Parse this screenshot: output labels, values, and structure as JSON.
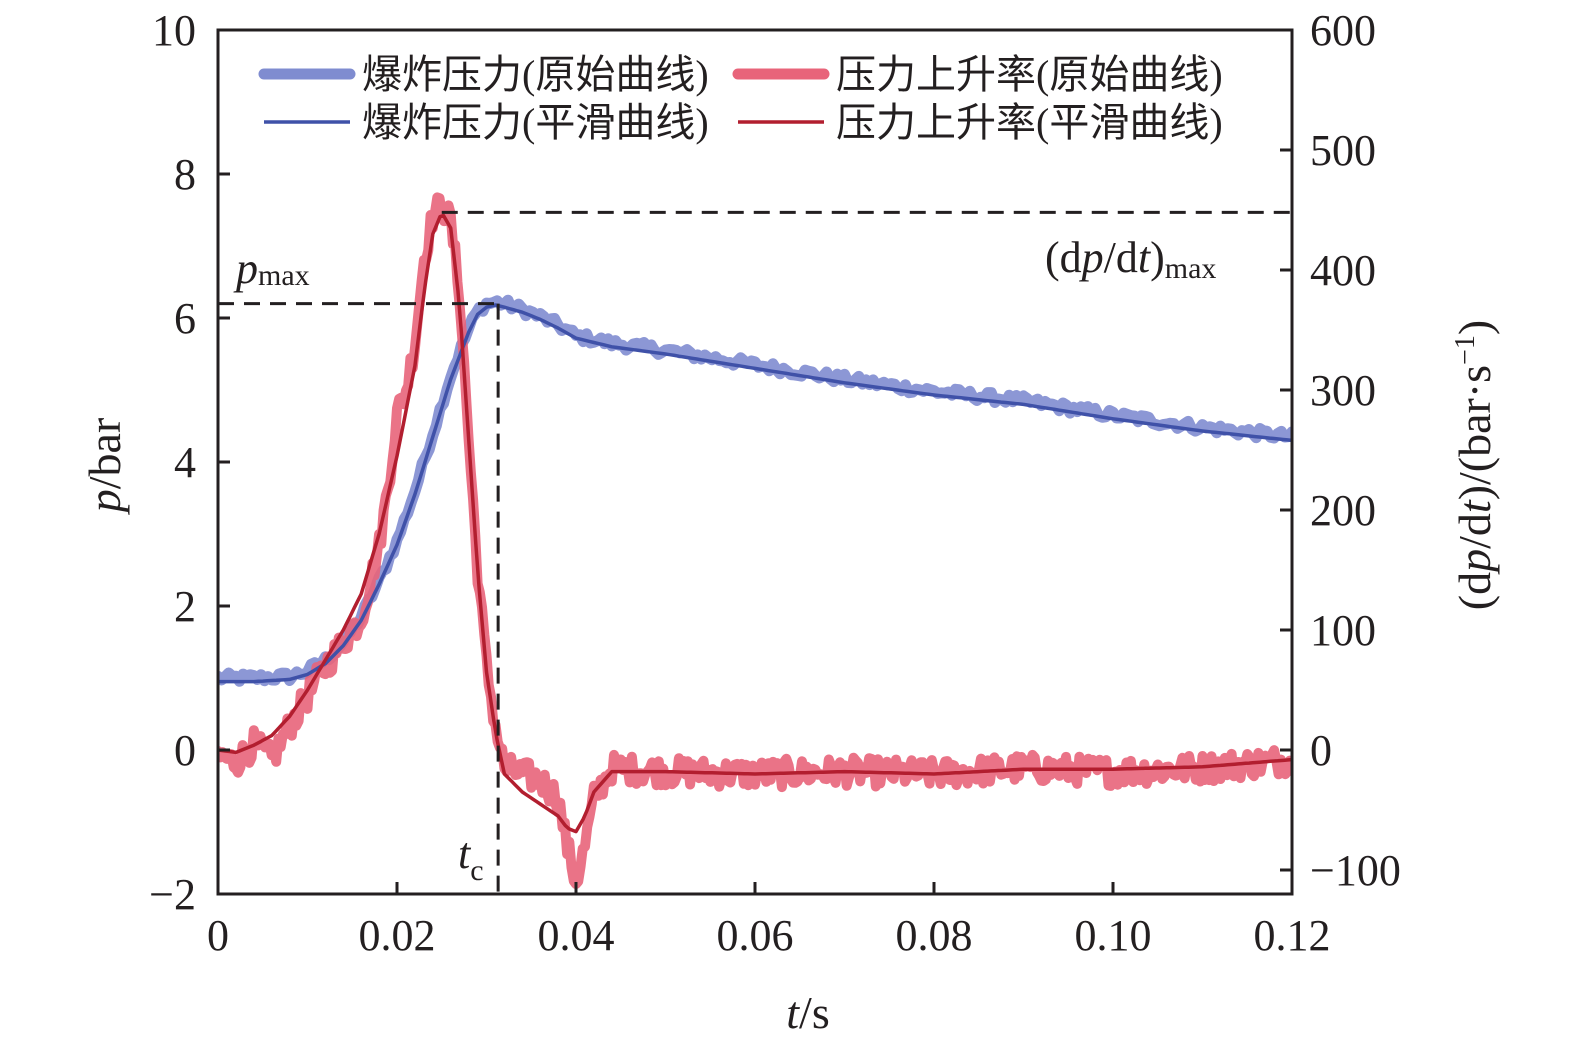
{
  "chart_data": {
    "type": "line",
    "x": {
      "ticks": [
        0,
        0.02,
        0.04,
        0.06,
        0.08,
        0.1,
        0.12
      ],
      "tick_labels": [
        "0",
        "0.02",
        "0.04",
        "0.06",
        "0.08",
        "0.10",
        "0.12"
      ],
      "range": [
        0,
        0.12
      ],
      "label_var": "t",
      "label_unit": "/s"
    },
    "y_left": {
      "ticks": [
        -2,
        0,
        2,
        4,
        6,
        8,
        10
      ],
      "tick_labels": [
        "−2",
        "0",
        "2",
        "4",
        "6",
        "8",
        "10"
      ],
      "range": [
        -2,
        10
      ],
      "label_var": "p",
      "label_unit": "/bar"
    },
    "y_right": {
      "ticks": [
        -100,
        0,
        100,
        200,
        300,
        400,
        500,
        600
      ],
      "tick_labels": [
        "−100",
        "0",
        "100",
        "200",
        "300",
        "400",
        "500",
        "600"
      ],
      "range": [
        -120,
        600
      ],
      "label": "(dp/dt)/(bar·s−1)",
      "label_part1": "(d",
      "label_var": "p",
      "label_part2": "/d",
      "label_var2": "t",
      "label_part3": ")/(bar·s",
      "label_sup": "−1",
      "label_part4": ")"
    },
    "legend": {
      "placement": "top",
      "entries": [
        "爆炸压力(原始曲线)",
        "压力上升率(原始曲线)",
        "爆炸压力(平滑曲线)",
        "压力上升率(平滑曲线)"
      ]
    },
    "annotations": {
      "pmax_label": "p",
      "pmax_sub": "max",
      "pmax_value": 6.2,
      "tc_label": "t",
      "tc_sub": "c",
      "tc_value": 0.0313,
      "dpdt_label_prefix": "(d",
      "dpdt_label_var": "p",
      "dpdt_label_mid": "/d",
      "dpdt_label_var2": "t",
      "dpdt_label_suffix": ")",
      "dpdt_sub": "max",
      "dpdt_value": 448,
      "dpdt_tpeak": 0.025
    },
    "series": [
      {
        "name": "爆炸压力(原始曲线)",
        "axis": "left",
        "color": "#7f8cd0",
        "x": [
          0,
          0.004,
          0.008,
          0.01,
          0.012,
          0.014,
          0.016,
          0.018,
          0.02,
          0.022,
          0.024,
          0.026,
          0.028,
          0.029,
          0.03,
          0.031,
          0.032,
          0.034,
          0.036,
          0.038,
          0.04,
          0.042,
          0.044,
          0.05,
          0.06,
          0.07,
          0.08,
          0.09,
          0.1,
          0.11,
          0.12
        ],
        "y": [
          1.0,
          1.0,
          1.02,
          1.1,
          1.25,
          1.5,
          1.85,
          2.35,
          2.9,
          3.6,
          4.4,
          5.2,
          5.85,
          6.1,
          6.2,
          6.22,
          6.2,
          6.12,
          6.02,
          5.9,
          5.75,
          5.7,
          5.65,
          5.55,
          5.35,
          5.15,
          4.98,
          4.85,
          4.65,
          4.48,
          4.35
        ]
      },
      {
        "name": "爆炸压力(平滑曲线)",
        "axis": "left",
        "color": "#3f51a8",
        "x": [
          0,
          0.004,
          0.008,
          0.01,
          0.012,
          0.014,
          0.016,
          0.018,
          0.02,
          0.022,
          0.024,
          0.026,
          0.028,
          0.029,
          0.03,
          0.031,
          0.032,
          0.034,
          0.036,
          0.038,
          0.04,
          0.042,
          0.044,
          0.05,
          0.06,
          0.07,
          0.08,
          0.09,
          0.1,
          0.11,
          0.12
        ],
        "y": [
          0.95,
          0.95,
          0.98,
          1.05,
          1.2,
          1.45,
          1.8,
          2.3,
          2.85,
          3.55,
          4.35,
          5.15,
          5.8,
          6.05,
          6.15,
          6.18,
          6.15,
          6.08,
          5.98,
          5.86,
          5.72,
          5.66,
          5.6,
          5.5,
          5.3,
          5.1,
          4.93,
          4.8,
          4.6,
          4.43,
          4.3
        ]
      },
      {
        "name": "压力上升率(原始曲线)",
        "axis": "right",
        "color": "#e8647a",
        "x": [
          0,
          0.002,
          0.004,
          0.006,
          0.008,
          0.01,
          0.012,
          0.014,
          0.016,
          0.018,
          0.019,
          0.02,
          0.021,
          0.022,
          0.023,
          0.024,
          0.025,
          0.026,
          0.027,
          0.028,
          0.029,
          0.03,
          0.031,
          0.032,
          0.034,
          0.036,
          0.038,
          0.039,
          0.04,
          0.041,
          0.042,
          0.044,
          0.05,
          0.06,
          0.07,
          0.08,
          0.09,
          0.1,
          0.11,
          0.12
        ],
        "y": [
          -5,
          -10,
          5,
          -8,
          20,
          45,
          70,
          90,
          110,
          170,
          220,
          280,
          300,
          340,
          410,
          445,
          455,
          440,
          380,
          260,
          150,
          70,
          20,
          -15,
          -20,
          -25,
          -40,
          -80,
          -110,
          -80,
          -40,
          -15,
          -18,
          -20,
          -18,
          -20,
          -15,
          -18,
          -15,
          -8
        ]
      },
      {
        "name": "压力上升率(平滑曲线)",
        "axis": "right",
        "color": "#b21e2f",
        "x": [
          0,
          0.002,
          0.004,
          0.006,
          0.008,
          0.01,
          0.012,
          0.014,
          0.016,
          0.018,
          0.02,
          0.022,
          0.023,
          0.024,
          0.025,
          0.026,
          0.027,
          0.028,
          0.029,
          0.03,
          0.031,
          0.032,
          0.034,
          0.036,
          0.038,
          0.039,
          0.04,
          0.041,
          0.042,
          0.044,
          0.05,
          0.06,
          0.07,
          0.08,
          0.09,
          0.1,
          0.11,
          0.12
        ],
        "y": [
          0,
          -2,
          4,
          12,
          28,
          50,
          75,
          100,
          130,
          180,
          245,
          320,
          380,
          430,
          448,
          435,
          370,
          260,
          150,
          65,
          15,
          -20,
          -35,
          -45,
          -55,
          -65,
          -68,
          -55,
          -35,
          -18,
          -18,
          -20,
          -18,
          -20,
          -16,
          -16,
          -14,
          -8
        ]
      }
    ]
  }
}
